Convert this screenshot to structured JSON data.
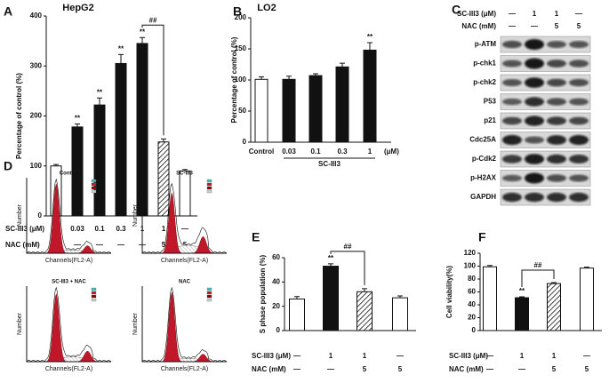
{
  "chart_data": [
    {
      "type": "bar",
      "panel": "A",
      "title": "HepG2",
      "ylabel": "Percentage of control (%)",
      "values": [
        100,
        178,
        222,
        305,
        345,
        148,
        90
      ],
      "errors": [
        3,
        6,
        14,
        18,
        12,
        6,
        3
      ],
      "bar_styles": [
        "open",
        "filled",
        "filled",
        "filled",
        "filled",
        "hatched",
        "open"
      ],
      "stars": [
        null,
        "**",
        "**",
        "**",
        "**",
        null,
        null
      ],
      "bracket": {
        "label": "##",
        "between": [
          4,
          5
        ]
      },
      "rows": [
        {
          "name": "SC-III3 (μM)",
          "values": [
            "—",
            "0.03",
            "0.1",
            "0.3",
            "1",
            "1",
            "—"
          ]
        },
        {
          "name": "NAC  (mM)",
          "values": [
            "—",
            "—",
            "—",
            "—",
            "—",
            "5",
            "5"
          ]
        }
      ],
      "ylim": [
        0,
        400
      ],
      "yticks": [
        0,
        100,
        200,
        300,
        400
      ]
    },
    {
      "type": "bar",
      "panel": "B",
      "title": "LO2",
      "ylabel": "Percentage of control (%)",
      "categories": [
        "Control",
        "0.03",
        "0.1",
        "0.3",
        "1"
      ],
      "xlabel": "SC-III3",
      "xunit": "(μM)",
      "values": [
        101,
        101,
        107,
        121,
        148
      ],
      "errors": [
        4,
        5,
        3,
        6,
        12
      ],
      "bar_styles": [
        "open",
        "filled",
        "filled",
        "filled",
        "filled"
      ],
      "stars": [
        null,
        null,
        null,
        null,
        "**"
      ],
      "ylim": [
        0,
        200
      ],
      "yticks": [
        0,
        50,
        100,
        150,
        200
      ]
    },
    {
      "type": "bar",
      "panel": "E",
      "ylabel": "S phase population (%)",
      "values": [
        26,
        53,
        32,
        27
      ],
      "errors": [
        2,
        2,
        2.5,
        1.5
      ],
      "bar_styles": [
        "open",
        "filled",
        "hatched",
        "open"
      ],
      "stars": [
        null,
        "**",
        null,
        null
      ],
      "bracket": {
        "label": "##",
        "between": [
          1,
          2
        ]
      },
      "rows": [
        {
          "name": "SC-III3 (μM)",
          "values": [
            "—",
            "1",
            "1",
            "—"
          ]
        },
        {
          "name": "NAC (mM)",
          "values": [
            "—",
            "—",
            "5",
            "5"
          ]
        }
      ],
      "ylim": [
        0,
        60
      ],
      "yticks": [
        0,
        20,
        40,
        60
      ]
    },
    {
      "type": "bar",
      "panel": "F",
      "ylabel": "Cell viability(%)",
      "values": [
        99,
        51,
        73,
        97
      ],
      "errors": [
        2,
        1.5,
        1.5,
        1.5
      ],
      "bar_styles": [
        "open",
        "filled",
        "hatched",
        "open"
      ],
      "stars": [
        null,
        "**",
        null,
        null
      ],
      "bracket": {
        "label": "##",
        "between": [
          1,
          2
        ]
      },
      "rows": [
        {
          "name": "SC-III3 (μM)",
          "values": [
            "—",
            "1",
            "1",
            "—"
          ]
        },
        {
          "name": "NAC (mM)",
          "values": [
            "—",
            "—",
            "5",
            "5"
          ]
        }
      ],
      "ylim": [
        0,
        120
      ],
      "yticks": [
        0,
        20,
        40,
        60,
        80,
        100,
        120
      ]
    }
  ],
  "blot": {
    "panel": "C",
    "rows": [
      {
        "name": "SC-III3 (μM)",
        "values": [
          "—",
          "1",
          "1",
          "—"
        ]
      },
      {
        "name": "NAC (mM)",
        "values": [
          "—",
          "—",
          "5",
          "5"
        ]
      }
    ],
    "proteins": [
      "p-ATM",
      "p-chk1",
      "p-chk2",
      "P53",
      "p21",
      "Cdc25A",
      "p-Cdk2",
      "p-H2AX",
      "GAPDH"
    ]
  },
  "flow": {
    "panel": "D",
    "titles": [
      "Control",
      "SC-III3",
      "SC-III3 + NAC",
      "NAC"
    ],
    "ylabel": "Number",
    "xlabel": "Channels(FL2-A)"
  }
}
